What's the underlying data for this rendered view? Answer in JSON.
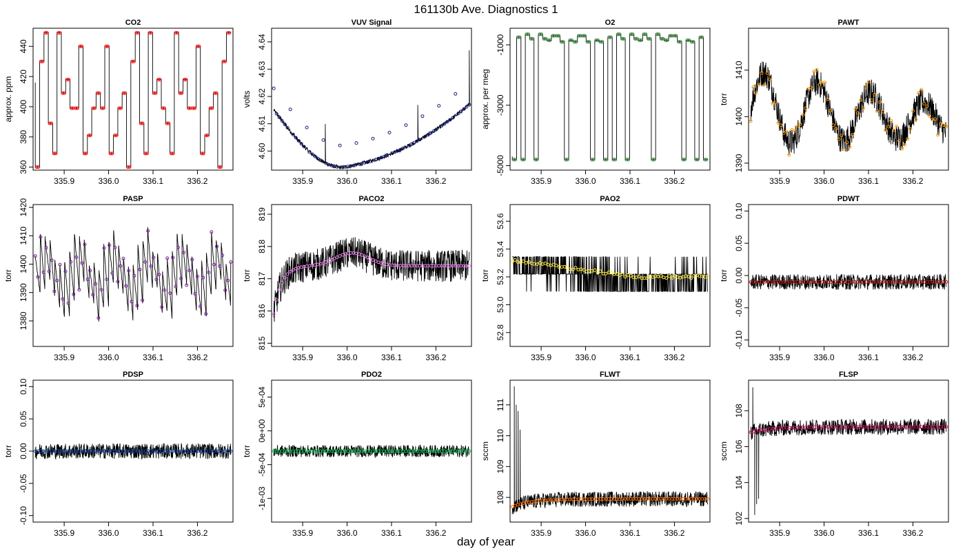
{
  "figure": {
    "title": "161130b   Ave. Diagnostics 1",
    "xlabel": "day of year"
  },
  "chart_data": [
    {
      "type": "line",
      "title": "CO2",
      "ylabel": "approx. ppm",
      "xlim": [
        335.83,
        336.28
      ],
      "ylim": [
        358,
        452
      ],
      "xticks": [
        335.9,
        336.0,
        336.1,
        336.2
      ],
      "xtick_labels": [
        "335.9",
        "336.0",
        "336.1",
        "336.2"
      ],
      "yticks": [
        360,
        380,
        400,
        420,
        440
      ],
      "ytick_labels": [
        "360",
        "380",
        "400",
        "420",
        "440"
      ],
      "marker_color": "#ff0000",
      "series": [
        {
          "kind": "step_cycle",
          "levels": [
            360,
            399,
            369,
            399,
            418,
            449,
            389,
            430,
            409,
            381,
            440,
            399,
            409,
            369,
            449
          ],
          "baseline": 399,
          "y0": 416
        }
      ]
    },
    {
      "type": "line",
      "title": "VUV Signal",
      "ylabel": "volts",
      "xlim": [
        335.83,
        336.28
      ],
      "ylim": [
        4.593,
        4.645
      ],
      "xticks": [
        335.9,
        336.0,
        336.1,
        336.2
      ],
      "xtick_labels": [
        "335.9",
        "336.0",
        "336.1",
        "336.2"
      ],
      "yticks": [
        4.6,
        4.61,
        4.62,
        4.63,
        4.64
      ],
      "ytick_labels": [
        "4.60",
        "4.61",
        "4.62",
        "4.63",
        "4.64"
      ],
      "marker_color": "#1a237e",
      "series": [
        {
          "kind": "baseline_spikes",
          "start": 4.615,
          "min_x": 335.99,
          "min": 4.594,
          "end": 4.617,
          "spike_height": 0.02
        }
      ]
    },
    {
      "type": "line",
      "title": "O2",
      "ylabel": "approx. per meg",
      "xlim": [
        335.83,
        336.28
      ],
      "ylim": [
        -5150,
        -450
      ],
      "xticks": [
        335.9,
        336.0,
        336.1,
        336.2
      ],
      "xtick_labels": [
        "335.9",
        "336.0",
        "336.1",
        "336.2"
      ],
      "yticks": [
        -5000,
        -3000,
        -1000
      ],
      "ytick_labels": [
        "-5000",
        "-3000",
        "-1000"
      ],
      "marker_color": "#2e7d32",
      "series": [
        {
          "kind": "step_cycle",
          "levels": [
            -4800,
            -850,
            -900,
            -700,
            -800,
            -4800,
            -650,
            -750,
            -900,
            -4800,
            -700,
            -850,
            -650,
            -800,
            -4800
          ],
          "baseline": -850,
          "y0": -4700
        }
      ]
    },
    {
      "type": "line",
      "title": "PAWT",
      "ylabel": "torr",
      "xlim": [
        335.83,
        336.28
      ],
      "ylim": [
        1388.5,
        1419
      ],
      "xticks": [
        335.9,
        336.0,
        336.1,
        336.2
      ],
      "xtick_labels": [
        "335.9",
        "336.0",
        "336.1",
        "336.2"
      ],
      "yticks": [
        1390,
        1400,
        1410
      ],
      "ytick_labels": [
        "1390",
        "1400",
        "1410"
      ],
      "marker_color": "#ff9800",
      "series": [
        {
          "kind": "noisy_wander",
          "center": 1402,
          "amplitude": 8,
          "noise": 3
        }
      ]
    },
    {
      "type": "line",
      "title": "PASP",
      "ylabel": "torr",
      "xlim": [
        335.83,
        336.28
      ],
      "ylim": [
        1371,
        1421
      ],
      "xticks": [
        335.9,
        336.0,
        336.1,
        336.2
      ],
      "xtick_labels": [
        "335.9",
        "336.0",
        "336.1",
        "336.2"
      ],
      "yticks": [
        1380,
        1390,
        1400,
        1410,
        1420
      ],
      "ytick_labels": [
        "1380",
        "1390",
        "1400",
        "1410",
        "1420"
      ],
      "marker_color": "#7b1fa2",
      "series": [
        {
          "kind": "sawtooth",
          "center": 1396,
          "amplitude": 11
        }
      ]
    },
    {
      "type": "line",
      "title": "PACO2",
      "ylabel": "torr",
      "xlim": [
        335.83,
        336.28
      ],
      "ylim": [
        814.9,
        819.3
      ],
      "xticks": [
        335.9,
        336.0,
        336.1,
        336.2
      ],
      "xtick_labels": [
        "335.9",
        "336.0",
        "336.1",
        "336.2"
      ],
      "yticks": [
        815,
        816,
        817,
        818,
        819
      ],
      "ytick_labels": [
        "815",
        "816",
        "817",
        "818",
        "819"
      ],
      "marker_color": "#ee82ee",
      "series": [
        {
          "kind": "band_rise",
          "start": 815.9,
          "plateau": 817.4,
          "bump": 0.4,
          "band": 0.5
        }
      ]
    },
    {
      "type": "line",
      "title": "PAO2",
      "ylabel": "torr",
      "xlim": [
        335.83,
        336.28
      ],
      "ylim": [
        52.7,
        53.72
      ],
      "xticks": [
        335.9,
        336.0,
        336.1,
        336.2
      ],
      "xtick_labels": [
        "335.9",
        "336.0",
        "336.1",
        "336.2"
      ],
      "yticks": [
        52.8,
        53.0,
        53.2,
        53.4,
        53.6
      ],
      "ytick_labels": [
        "52.8",
        "53.0",
        "53.2",
        "53.4",
        "53.6"
      ],
      "marker_color": "#ffeb3b",
      "series": [
        {
          "kind": "quantized_band",
          "start": 53.32,
          "end": 53.2,
          "band": 0.12
        }
      ]
    },
    {
      "type": "line",
      "title": "PDWT",
      "ylabel": "torr",
      "xlim": [
        335.83,
        336.28
      ],
      "ylim": [
        -0.11,
        0.11
      ],
      "xticks": [
        335.9,
        336.0,
        336.1,
        336.2
      ],
      "xtick_labels": [
        "335.9",
        "336.0",
        "336.1",
        "336.2"
      ],
      "yticks": [
        -0.1,
        -0.05,
        0.0,
        0.05,
        0.1
      ],
      "ytick_labels": [
        "-0.10",
        "-0.05",
        "0.00",
        "0.05",
        "0.10"
      ],
      "marker_color": "#b71c1c",
      "series": [
        {
          "kind": "flat_band",
          "center": -0.01,
          "band": 0.012
        }
      ]
    },
    {
      "type": "line",
      "title": "PDSP",
      "ylabel": "torr",
      "xlim": [
        335.83,
        336.28
      ],
      "ylim": [
        -0.11,
        0.11
      ],
      "xticks": [
        335.9,
        336.0,
        336.1,
        336.2
      ],
      "xtick_labels": [
        "335.9",
        "336.0",
        "336.1",
        "336.2"
      ],
      "yticks": [
        -0.1,
        -0.05,
        0.0,
        0.05,
        0.1
      ],
      "ytick_labels": [
        "-0.10",
        "-0.05",
        "0.00",
        "0.05",
        "0.10"
      ],
      "marker_color": "#0d47a1",
      "series": [
        {
          "kind": "flat_band",
          "center": 0.0,
          "band": 0.012
        }
      ]
    },
    {
      "type": "line",
      "title": "PDO2",
      "ylabel": "torr",
      "xlim": [
        335.83,
        336.28
      ],
      "ylim": [
        -0.00135,
        0.00075
      ],
      "xticks": [
        335.9,
        336.0,
        336.1,
        336.2
      ],
      "xtick_labels": [
        "335.9",
        "336.0",
        "336.1",
        "336.2"
      ],
      "yticks": [
        -0.001,
        -0.0005,
        0.0,
        0.0005
      ],
      "ytick_labels": [
        "-1e-03",
        "-5e-04",
        "0e+00",
        "5e-04"
      ],
      "marker_color": "#00c853",
      "series": [
        {
          "kind": "flat_band",
          "center": -0.0003,
          "band": 9e-05
        }
      ]
    },
    {
      "type": "line",
      "title": "FLWT",
      "ylabel": "sccm",
      "xlim": [
        335.83,
        336.28
      ],
      "ylim": [
        107.2,
        111.8
      ],
      "xticks": [
        335.9,
        336.0,
        336.1,
        336.2
      ],
      "xtick_labels": [
        "335.9",
        "336.0",
        "336.1",
        "336.2"
      ],
      "yticks": [
        108,
        109,
        110,
        111
      ],
      "ytick_labels": [
        "108",
        "109",
        "110",
        "111"
      ],
      "marker_color": "#ff6d00",
      "series": [
        {
          "kind": "rise_band",
          "start": 107.7,
          "plateau": 107.95,
          "band": 0.25,
          "early_spikes": [
            111.6,
            111.0,
            110.8,
            110.2
          ]
        }
      ]
    },
    {
      "type": "line",
      "title": "FLSP",
      "ylabel": "sccm",
      "xlim": [
        335.83,
        336.28
      ],
      "ylim": [
        101.8,
        109.7
      ],
      "xticks": [
        335.9,
        336.0,
        336.1,
        336.2
      ],
      "xtick_labels": [
        "335.9",
        "336.0",
        "336.1",
        "336.2"
      ],
      "yticks": [
        102,
        104,
        106,
        108
      ],
      "ytick_labels": [
        "102",
        "104",
        "106",
        "108"
      ],
      "marker_color": "#c51162",
      "series": [
        {
          "kind": "rise_band",
          "start": 106.8,
          "plateau": 107.1,
          "band": 0.45,
          "early_spikes": [
            109.3,
            102.2,
            102.8,
            103.1
          ]
        }
      ]
    }
  ]
}
